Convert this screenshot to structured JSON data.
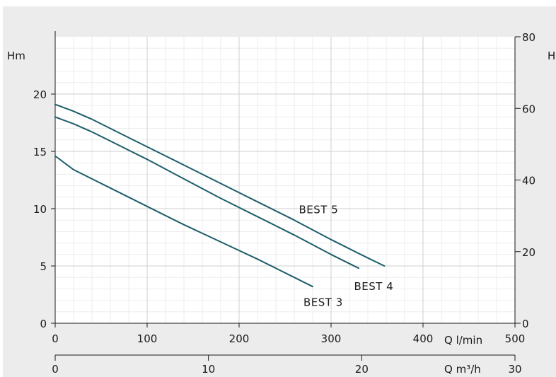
{
  "chart_data": {
    "type": "line",
    "title": "",
    "xlabel": "Q l/min",
    "ylabel": "Hm",
    "y2label": "H ft",
    "x2label": "Q m³/h",
    "xlim": [
      0,
      500
    ],
    "ylim": [
      0,
      25
    ],
    "y2lim": [
      0,
      80
    ],
    "x2lim": [
      0,
      30
    ],
    "x_ticks": [
      0,
      100,
      200,
      300,
      400,
      500
    ],
    "y_ticks": [
      0,
      5,
      10,
      15,
      20
    ],
    "y2_ticks": [
      0,
      20,
      40,
      60,
      80
    ],
    "x2_ticks": [
      0,
      10,
      20,
      30
    ],
    "grid": true,
    "line_color": "#1d5e6a",
    "series": [
      {
        "name": "BEST 3",
        "x": [
          0,
          20,
          40,
          60,
          80,
          100,
          140,
          180,
          220,
          260,
          280
        ],
        "y": [
          14.6,
          13.4,
          12.6,
          11.8,
          11.0,
          10.2,
          8.6,
          7.1,
          5.6,
          4.0,
          3.2
        ]
      },
      {
        "name": "BEST 4",
        "x": [
          0,
          20,
          40,
          60,
          80,
          100,
          140,
          180,
          220,
          260,
          300,
          330
        ],
        "y": [
          18.0,
          17.4,
          16.7,
          15.9,
          15.1,
          14.3,
          12.6,
          10.9,
          9.3,
          7.7,
          6.0,
          4.8
        ]
      },
      {
        "name": "BEST 5",
        "x": [
          0,
          20,
          40,
          60,
          80,
          100,
          140,
          180,
          220,
          260,
          300,
          340,
          358
        ],
        "y": [
          19.1,
          18.5,
          17.8,
          17.0,
          16.2,
          15.4,
          13.8,
          12.2,
          10.6,
          9.0,
          7.3,
          5.7,
          5.0
        ]
      }
    ],
    "labels": [
      {
        "text": "BEST 5",
        "x": 265,
        "y": 9.6
      },
      {
        "text": "BEST 4",
        "x": 325,
        "y": 2.9
      },
      {
        "text": "BEST 3",
        "x": 270,
        "y": 1.5
      }
    ]
  }
}
